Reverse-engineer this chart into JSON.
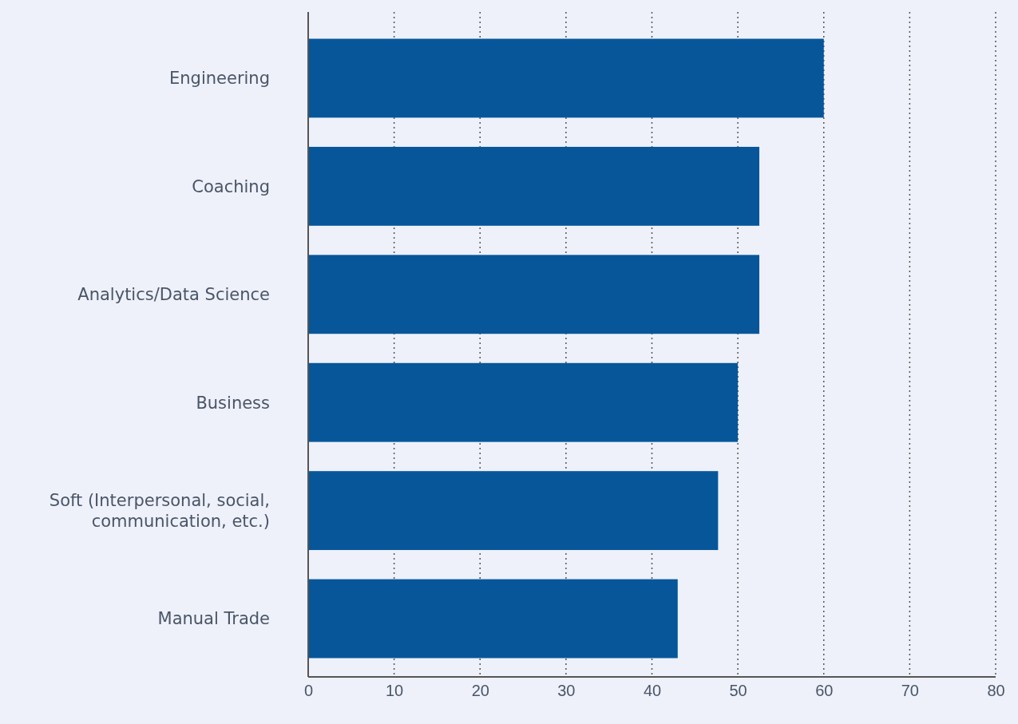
{
  "chart_data": {
    "type": "bar",
    "orientation": "horizontal",
    "categories": [
      "Engineering",
      "Coaching",
      "Analytics/Data Science",
      "Business",
      "Soft (Interpersonal, social, communication, etc.)",
      "Manual Trade"
    ],
    "values": [
      60,
      52.5,
      52.5,
      50,
      47.7,
      43
    ],
    "color": "#07569a",
    "xlim": [
      0,
      80
    ],
    "xticks": [
      0,
      10,
      20,
      30,
      40,
      50,
      60,
      70,
      80
    ],
    "grid": "x"
  }
}
